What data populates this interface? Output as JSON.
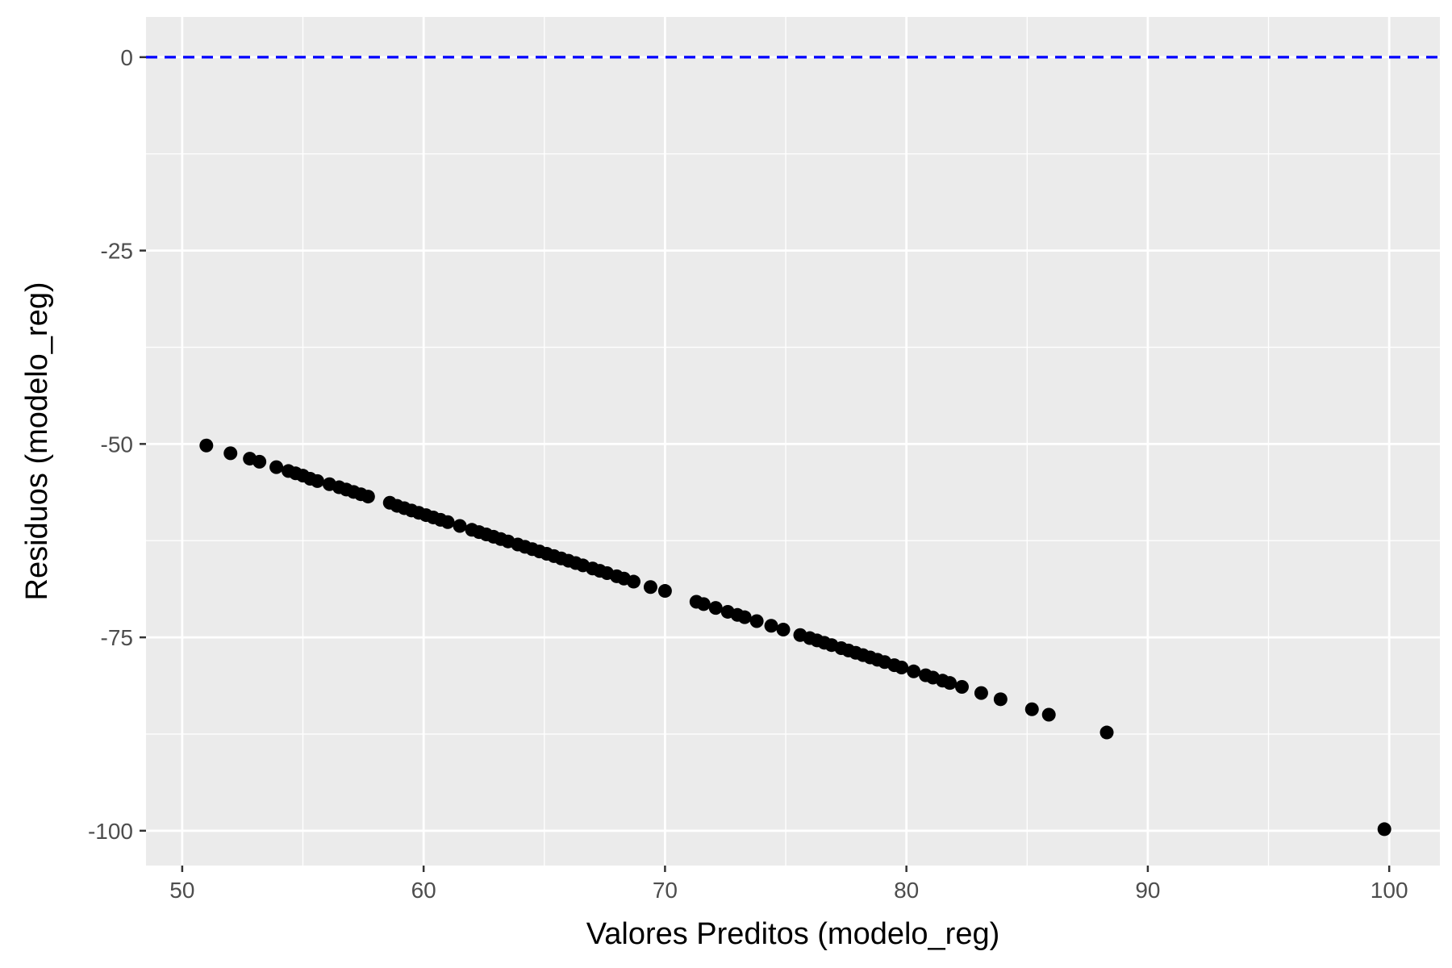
{
  "chart_data": {
    "type": "scatter",
    "title": "",
    "xlabel": "Valores Preditos (modelo_reg)",
    "ylabel": "Residuos (modelo_reg)",
    "xlim": [
      48.5,
      102.1
    ],
    "ylim": [
      -104.5,
      5.2
    ],
    "x_ticks": [
      50,
      60,
      70,
      80,
      90,
      100
    ],
    "y_ticks": [
      0,
      -25,
      -50,
      -75,
      -100
    ],
    "x_tick_labels": [
      "50",
      "60",
      "70",
      "80",
      "90",
      "100"
    ],
    "y_tick_labels": [
      "0",
      "-25",
      "-50",
      "-75",
      "-100"
    ],
    "grid": true,
    "reference_line": {
      "y": 0,
      "style": "dashed",
      "color": "#0000ff"
    },
    "colors": {
      "panel_background": "#ebebeb",
      "grid": "#ffffff",
      "points": "#000000"
    },
    "series": [
      {
        "x": [
          51.0,
          52.0,
          52.8,
          53.2,
          53.9,
          54.4,
          54.7,
          55.0,
          55.3,
          55.6,
          56.1,
          56.5,
          56.8,
          57.1,
          57.4,
          57.7,
          58.6,
          58.9,
          59.2,
          59.5,
          59.8,
          60.1,
          60.4,
          60.7,
          61.0,
          61.5,
          62.0,
          62.3,
          62.6,
          62.9,
          63.2,
          63.5,
          63.9,
          64.2,
          64.5,
          64.8,
          65.1,
          65.4,
          65.7,
          66.0,
          66.3,
          66.6,
          67.0,
          67.3,
          67.6,
          68.0,
          68.3,
          68.7,
          69.4,
          70.0,
          71.3,
          71.6,
          72.1,
          72.6,
          73.0,
          73.3,
          73.8,
          74.4,
          74.9,
          75.6,
          76.0,
          76.3,
          76.6,
          76.9,
          77.3,
          77.6,
          77.9,
          78.2,
          78.5,
          78.8,
          79.1,
          79.5,
          79.8,
          80.3,
          80.8,
          81.1,
          81.5,
          81.8,
          82.3,
          83.1,
          83.9,
          85.2,
          85.9,
          88.3,
          99.8
        ],
        "y": [
          -50.2,
          -51.2,
          -51.9,
          -52.3,
          -53.0,
          -53.5,
          -53.8,
          -54.1,
          -54.5,
          -54.8,
          -55.2,
          -55.6,
          -55.9,
          -56.2,
          -56.5,
          -56.8,
          -57.6,
          -58.0,
          -58.3,
          -58.6,
          -58.9,
          -59.2,
          -59.5,
          -59.8,
          -60.1,
          -60.6,
          -61.1,
          -61.4,
          -61.7,
          -62.0,
          -62.3,
          -62.6,
          -63.0,
          -63.3,
          -63.6,
          -63.9,
          -64.2,
          -64.5,
          -64.8,
          -65.1,
          -65.4,
          -65.7,
          -66.1,
          -66.4,
          -66.7,
          -67.1,
          -67.4,
          -67.8,
          -68.5,
          -69.0,
          -70.4,
          -70.7,
          -71.2,
          -71.7,
          -72.1,
          -72.4,
          -72.9,
          -73.5,
          -74.0,
          -74.7,
          -75.1,
          -75.4,
          -75.7,
          -76.0,
          -76.4,
          -76.7,
          -77.0,
          -77.3,
          -77.6,
          -77.9,
          -78.2,
          -78.6,
          -78.9,
          -79.4,
          -79.9,
          -80.2,
          -80.6,
          -80.9,
          -81.4,
          -82.2,
          -83.0,
          -84.3,
          -85.0,
          -87.3,
          -99.8
        ]
      }
    ]
  }
}
